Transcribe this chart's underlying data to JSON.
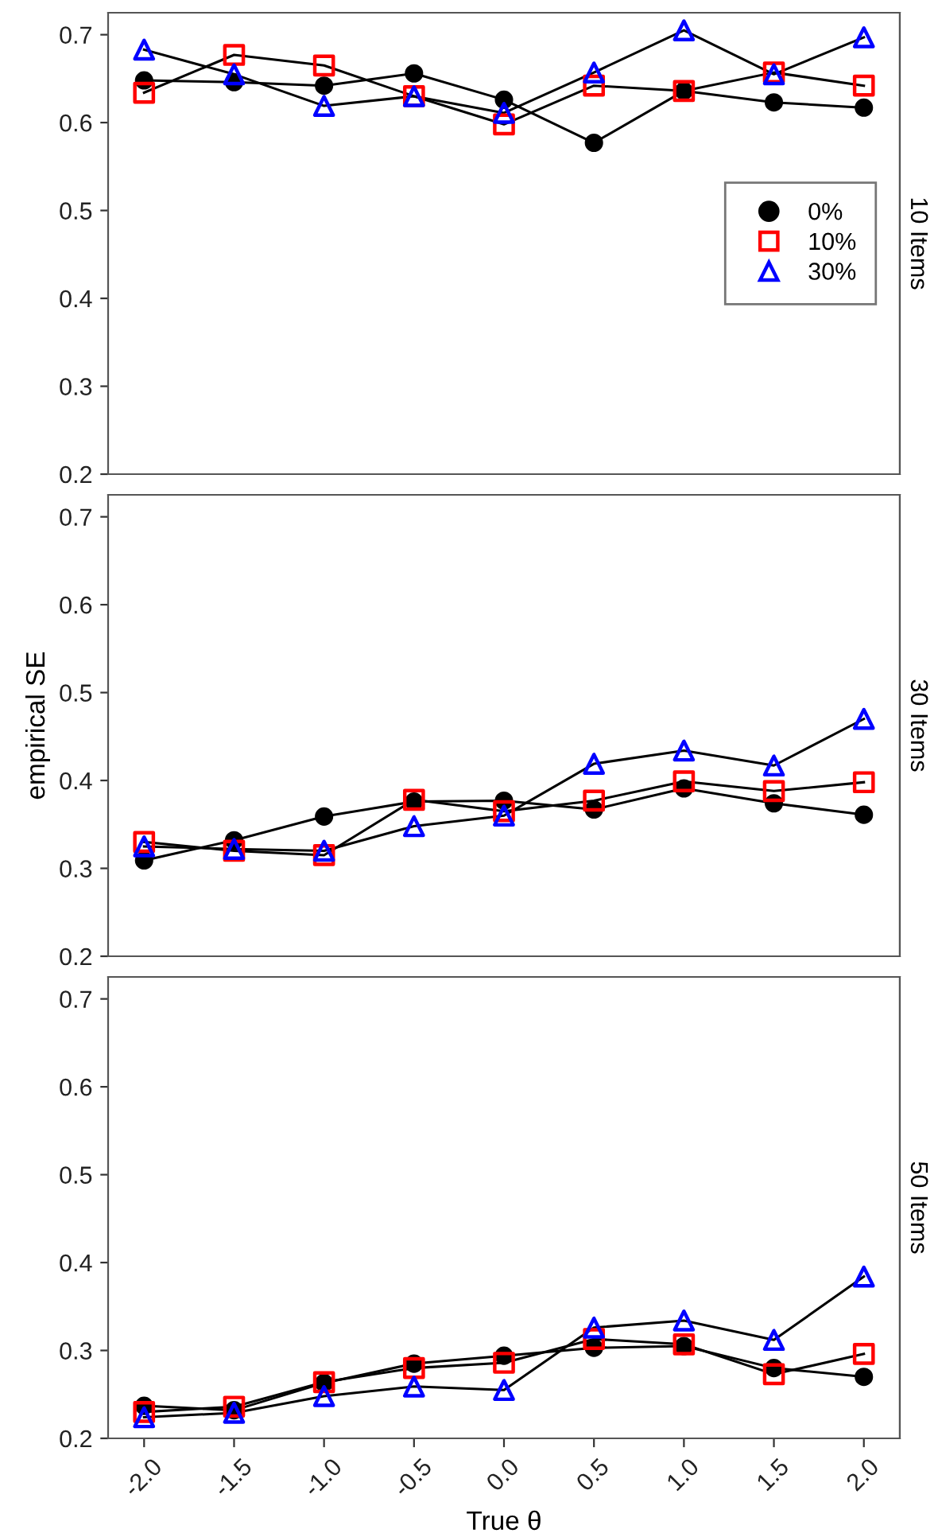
{
  "chart_data": [
    {
      "type": "line",
      "title": "10 Items",
      "x": [
        -2.0,
        -1.5,
        -1.0,
        -0.5,
        0.0,
        0.5,
        1.0,
        1.5,
        2.0
      ],
      "xlim": [
        -2.2,
        2.2
      ],
      "ylim": [
        0.2,
        0.725
      ],
      "yticks": [
        0.2,
        0.3,
        0.4,
        0.5,
        0.6,
        0.7
      ],
      "tick_labels": "y",
      "legend": "right",
      "grid": false,
      "series": [
        {
          "name": "0%",
          "color": "#000000",
          "marker": "circle",
          "values": [
            0.648,
            0.646,
            0.642,
            0.656,
            0.626,
            0.577,
            0.636,
            0.623,
            0.617
          ]
        },
        {
          "name": "10%",
          "color": "#ff0000",
          "marker": "square",
          "values": [
            0.634,
            0.677,
            0.665,
            0.63,
            0.598,
            0.642,
            0.636,
            0.657,
            0.642
          ]
        },
        {
          "name": "30%",
          "color": "#0000ff",
          "marker": "triangle",
          "values": [
            0.683,
            0.655,
            0.619,
            0.63,
            0.611,
            0.657,
            0.705,
            0.655,
            0.697
          ]
        }
      ]
    },
    {
      "type": "line",
      "title": "30 Items",
      "ylabel": "empirical SE",
      "x": [
        -2.0,
        -1.5,
        -1.0,
        -0.5,
        0.0,
        0.5,
        1.0,
        1.5,
        2.0
      ],
      "xlim": [
        -2.2,
        2.2
      ],
      "ylim": [
        0.2,
        0.725
      ],
      "yticks": [
        0.2,
        0.3,
        0.4,
        0.5,
        0.6,
        0.7
      ],
      "tick_labels": "y",
      "grid": false,
      "series": [
        {
          "color": "#000000",
          "marker": "circle",
          "values": [
            0.309,
            0.332,
            0.359,
            0.376,
            0.377,
            0.367,
            0.391,
            0.374,
            0.361
          ]
        },
        {
          "color": "#ff0000",
          "marker": "square",
          "values": [
            0.33,
            0.32,
            0.315,
            0.378,
            0.365,
            0.377,
            0.399,
            0.388,
            0.398
          ]
        },
        {
          "color": "#0000ff",
          "marker": "triangle",
          "values": [
            0.325,
            0.322,
            0.32,
            0.348,
            0.36,
            0.419,
            0.434,
            0.417,
            0.47
          ]
        }
      ]
    },
    {
      "type": "line",
      "title": "50 Items",
      "xlabel": "True θ",
      "x": [
        -2.0,
        -1.5,
        -1.0,
        -0.5,
        0.0,
        0.5,
        1.0,
        1.5,
        2.0
      ],
      "xlim": [
        -2.2,
        2.2
      ],
      "xticks": [
        {
          "value": -2.0,
          "label": "-2.0"
        },
        {
          "value": -1.5,
          "label": "-1.5"
        },
        {
          "value": -1.0,
          "label": "-1.0"
        },
        {
          "value": -0.5,
          "label": "-0.5"
        },
        {
          "value": 0.0,
          "label": "0.0"
        },
        {
          "value": 0.5,
          "label": "0.5"
        },
        {
          "value": 1.0,
          "label": "1.0"
        },
        {
          "value": 1.5,
          "label": "1.5"
        },
        {
          "value": 2.0,
          "label": "2.0"
        }
      ],
      "ylim": [
        0.2,
        0.725
      ],
      "yticks": [
        0.2,
        0.3,
        0.4,
        0.5,
        0.6,
        0.7
      ],
      "grid": false,
      "series": [
        {
          "color": "#000000",
          "marker": "circle",
          "values": [
            0.237,
            0.232,
            0.263,
            0.285,
            0.294,
            0.303,
            0.305,
            0.28,
            0.27
          ]
        },
        {
          "color": "#ff0000",
          "marker": "square",
          "values": [
            0.23,
            0.236,
            0.264,
            0.28,
            0.286,
            0.313,
            0.307,
            0.273,
            0.296
          ]
        },
        {
          "color": "#0000ff",
          "marker": "triangle",
          "values": [
            0.224,
            0.229,
            0.248,
            0.259,
            0.255,
            0.326,
            0.334,
            0.312,
            0.384
          ]
        }
      ]
    }
  ]
}
